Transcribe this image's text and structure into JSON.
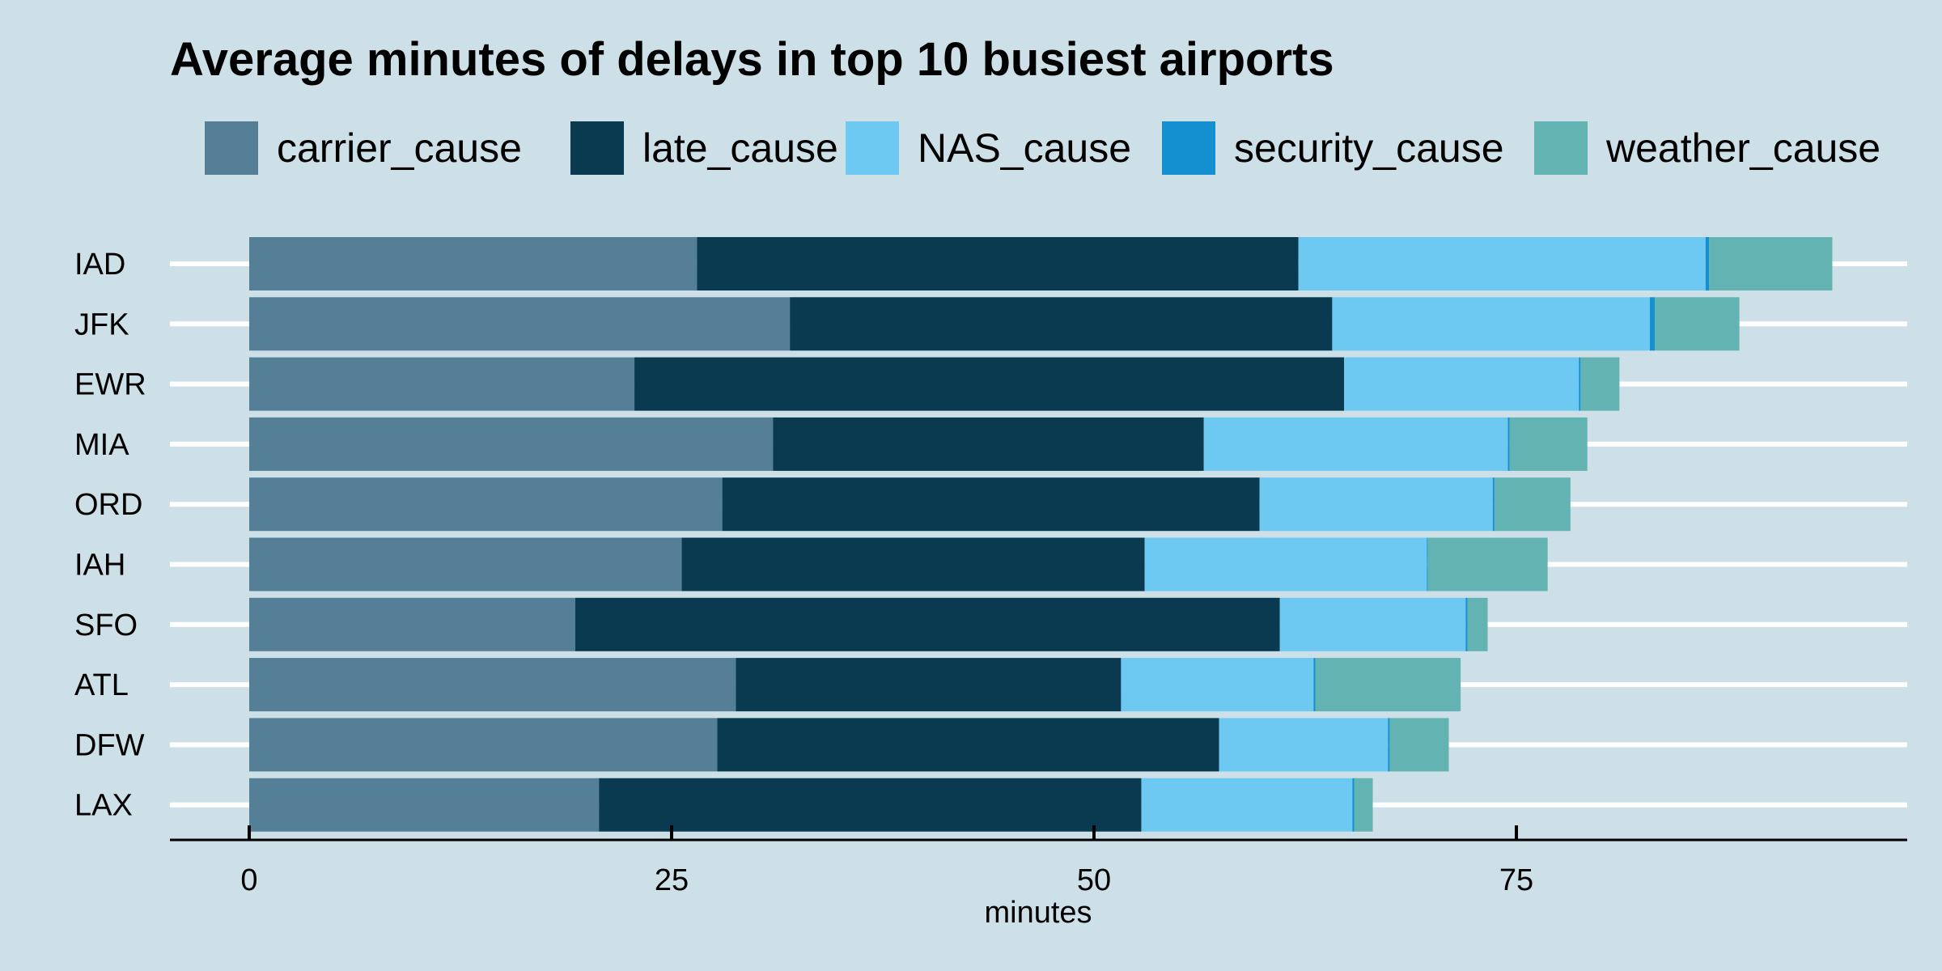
{
  "chart_data": {
    "type": "bar",
    "orientation": "horizontal",
    "stacked": true,
    "title": "Average minutes of delays in top 10 busiest airports",
    "xlabel": "minutes",
    "ylabel": "",
    "xlim": [
      0,
      98
    ],
    "x_ticks": [
      0,
      25,
      50,
      75
    ],
    "x_tick_labels": [
      "0",
      "25",
      "50",
      "75"
    ],
    "grid": true,
    "legend_position": "top",
    "categories": [
      "IAD",
      "JFK",
      "EWR",
      "MIA",
      "ORD",
      "IAH",
      "SFO",
      "ATL",
      "DFW",
      "LAX"
    ],
    "series": [
      {
        "name": "carrier_cause",
        "color": "#557f97",
        "values": [
          26.5,
          32.0,
          22.8,
          31.0,
          28.0,
          25.6,
          19.3,
          28.8,
          27.7,
          20.7
        ]
      },
      {
        "name": "late_cause",
        "color": "#093a50",
        "values": [
          35.6,
          32.1,
          42.0,
          25.5,
          31.8,
          27.4,
          41.7,
          22.8,
          29.7,
          32.1
        ]
      },
      {
        "name": "NAS_cause",
        "color": "#6dc8f2",
        "values": [
          24.1,
          18.8,
          13.9,
          18.0,
          13.8,
          16.7,
          11.0,
          11.4,
          10.0,
          12.5
        ]
      },
      {
        "name": "security_cause",
        "color": "#1490d1",
        "values": [
          0.2,
          0.3,
          0.1,
          0.1,
          0.1,
          0.05,
          0.1,
          0.1,
          0.1,
          0.1
        ]
      },
      {
        "name": "weather_cause",
        "color": "#64b3b3",
        "values": [
          7.3,
          5.0,
          2.3,
          4.6,
          4.5,
          7.1,
          1.2,
          8.6,
          3.5,
          1.1
        ]
      }
    ]
  }
}
